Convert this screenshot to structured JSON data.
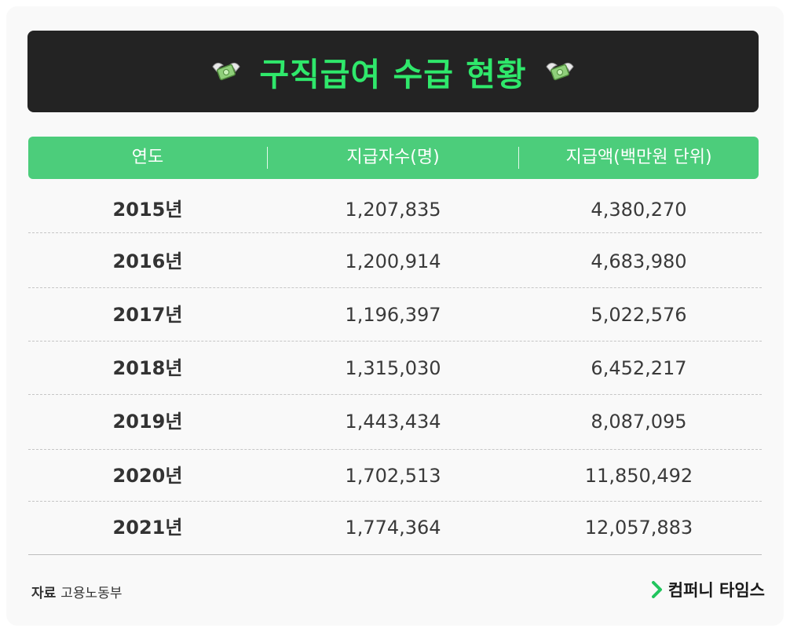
{
  "title": "구직급여 수급 현황",
  "icons": {
    "left": "money-with-wings-icon",
    "right": "money-with-wings-icon",
    "brand": "chevron-right-icon"
  },
  "colors": {
    "banner_bg": "#232323",
    "title_green": "#2fe86b",
    "header_green": "#4ccd7b"
  },
  "chart_data": {
    "type": "table",
    "columns": [
      "연도",
      "지급자수(명)",
      "지급액(백만원 단위)"
    ],
    "rows": [
      [
        "2015년",
        "1,207,835",
        "4,380,270"
      ],
      [
        "2016년",
        "1,200,914",
        "4,683,980"
      ],
      [
        "2017년",
        "1,196,397",
        "5,022,576"
      ],
      [
        "2018년",
        "1,315,030",
        "6,452,217"
      ],
      [
        "2019년",
        "1,443,434",
        "8,087,095"
      ],
      [
        "2020년",
        "1,702,513",
        "11,850,492"
      ],
      [
        "2021년",
        "1,774,364",
        "12,057,883"
      ]
    ]
  },
  "footer": {
    "source_label": "자료",
    "source_value": "고용노동부",
    "brand": "컴퍼니 타임스"
  }
}
